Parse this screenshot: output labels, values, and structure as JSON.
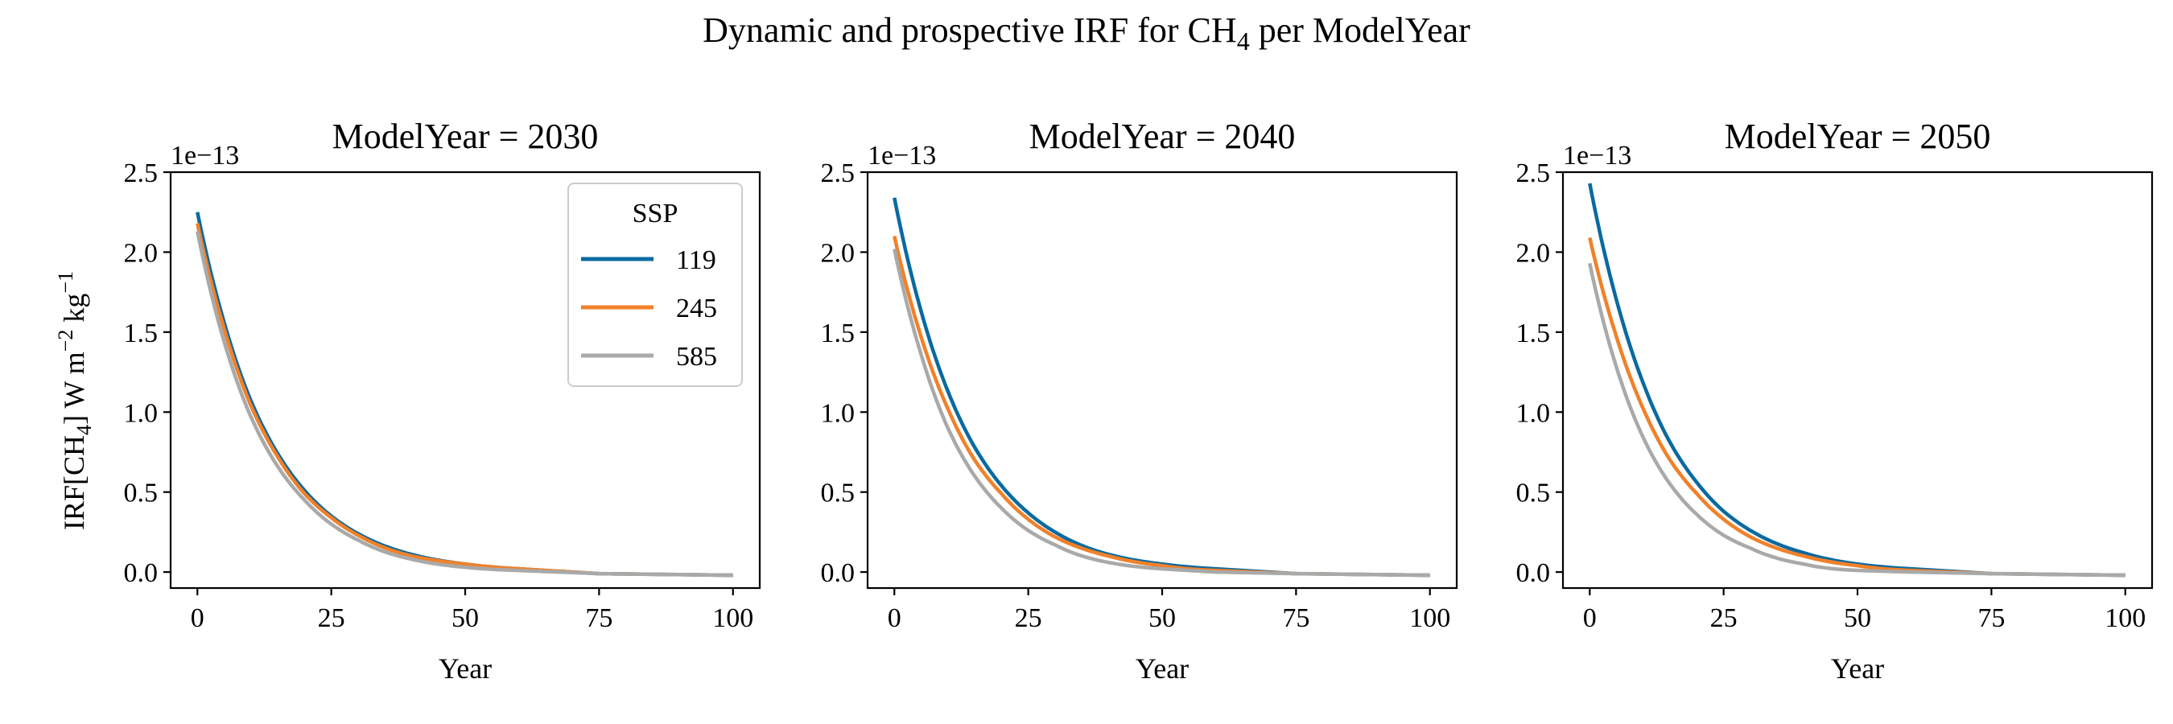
{
  "figure": {
    "title_main": "Dynamic and prospective IRF for CH",
    "title_sub": "4",
    "title_tail": " per ModelYear"
  },
  "y_axis": {
    "label_a": "IRF[CH",
    "label_a_sub": "4",
    "label_b": "]  W m",
    "label_b_sup": "−2",
    "label_c": " kg",
    "label_c_sup": "−1",
    "offset_text": "1e−13",
    "tick_labels": [
      "0.0",
      "0.5",
      "1.0",
      "1.5",
      "2.0",
      "2.5"
    ]
  },
  "x_axis": {
    "label": "Year",
    "tick_labels": [
      "0",
      "25",
      "50",
      "75",
      "100"
    ]
  },
  "legend": {
    "title": "SSP",
    "entries": [
      "119",
      "245",
      "585"
    ],
    "placement": "upper right of first panel"
  },
  "colors": {
    "119": "#0a6aa1",
    "245": "#f0812a",
    "585": "#a9a9a9"
  },
  "chart_data": [
    {
      "type": "line",
      "title": "ModelYear = 2030",
      "xlabel": "Year",
      "ylabel": "IRF[CH4]  W m−2 kg−1",
      "xlim": [
        -5,
        105
      ],
      "ylim": [
        -0.1,
        2.5
      ],
      "y_scale_factor": "1e-13",
      "x": [
        0,
        5,
        10,
        15,
        20,
        25,
        30,
        40,
        50,
        60,
        75,
        100
      ],
      "series": [
        {
          "name": "119",
          "values": [
            2.25,
            1.56,
            1.07,
            0.74,
            0.51,
            0.35,
            0.24,
            0.11,
            0.05,
            0.02,
            -0.01,
            -0.02
          ]
        },
        {
          "name": "245",
          "values": [
            2.18,
            1.52,
            1.04,
            0.72,
            0.49,
            0.34,
            0.23,
            0.1,
            0.05,
            0.02,
            -0.01,
            -0.02
          ]
        },
        {
          "name": "585",
          "values": [
            2.13,
            1.44,
            0.97,
            0.66,
            0.45,
            0.3,
            0.2,
            0.08,
            0.03,
            0.01,
            -0.01,
            -0.02
          ]
        }
      ]
    },
    {
      "type": "line",
      "title": "ModelYear = 2040",
      "xlabel": "Year",
      "xlim": [
        -5,
        105
      ],
      "ylim": [
        -0.1,
        2.5
      ],
      "y_scale_factor": "1e-13",
      "x": [
        0,
        5,
        10,
        15,
        20,
        25,
        30,
        40,
        50,
        60,
        75,
        100
      ],
      "series": [
        {
          "name": "119",
          "values": [
            2.34,
            1.63,
            1.13,
            0.78,
            0.54,
            0.37,
            0.25,
            0.11,
            0.05,
            0.02,
            -0.01,
            -0.02
          ]
        },
        {
          "name": "245",
          "values": [
            2.1,
            1.47,
            1.02,
            0.7,
            0.49,
            0.33,
            0.22,
            0.1,
            0.04,
            0.01,
            -0.01,
            -0.02
          ]
        },
        {
          "name": "585",
          "values": [
            2.02,
            1.36,
            0.9,
            0.6,
            0.4,
            0.26,
            0.17,
            0.06,
            0.02,
            0.0,
            -0.01,
            -0.02
          ]
        }
      ]
    },
    {
      "type": "line",
      "title": "ModelYear = 2050",
      "xlabel": "Year",
      "xlim": [
        -5,
        105
      ],
      "ylim": [
        -0.1,
        2.5
      ],
      "y_scale_factor": "1e-13",
      "x": [
        0,
        5,
        10,
        15,
        20,
        25,
        30,
        40,
        50,
        60,
        75,
        100
      ],
      "series": [
        {
          "name": "119",
          "values": [
            2.43,
            1.7,
            1.18,
            0.81,
            0.56,
            0.38,
            0.26,
            0.12,
            0.05,
            0.02,
            -0.01,
            -0.02
          ]
        },
        {
          "name": "245",
          "values": [
            2.09,
            1.47,
            1.02,
            0.7,
            0.49,
            0.33,
            0.22,
            0.1,
            0.04,
            0.01,
            -0.01,
            -0.02
          ]
        },
        {
          "name": "585",
          "values": [
            1.93,
            1.28,
            0.84,
            0.55,
            0.36,
            0.23,
            0.15,
            0.05,
            0.01,
            0.0,
            -0.01,
            -0.02
          ]
        }
      ]
    }
  ]
}
